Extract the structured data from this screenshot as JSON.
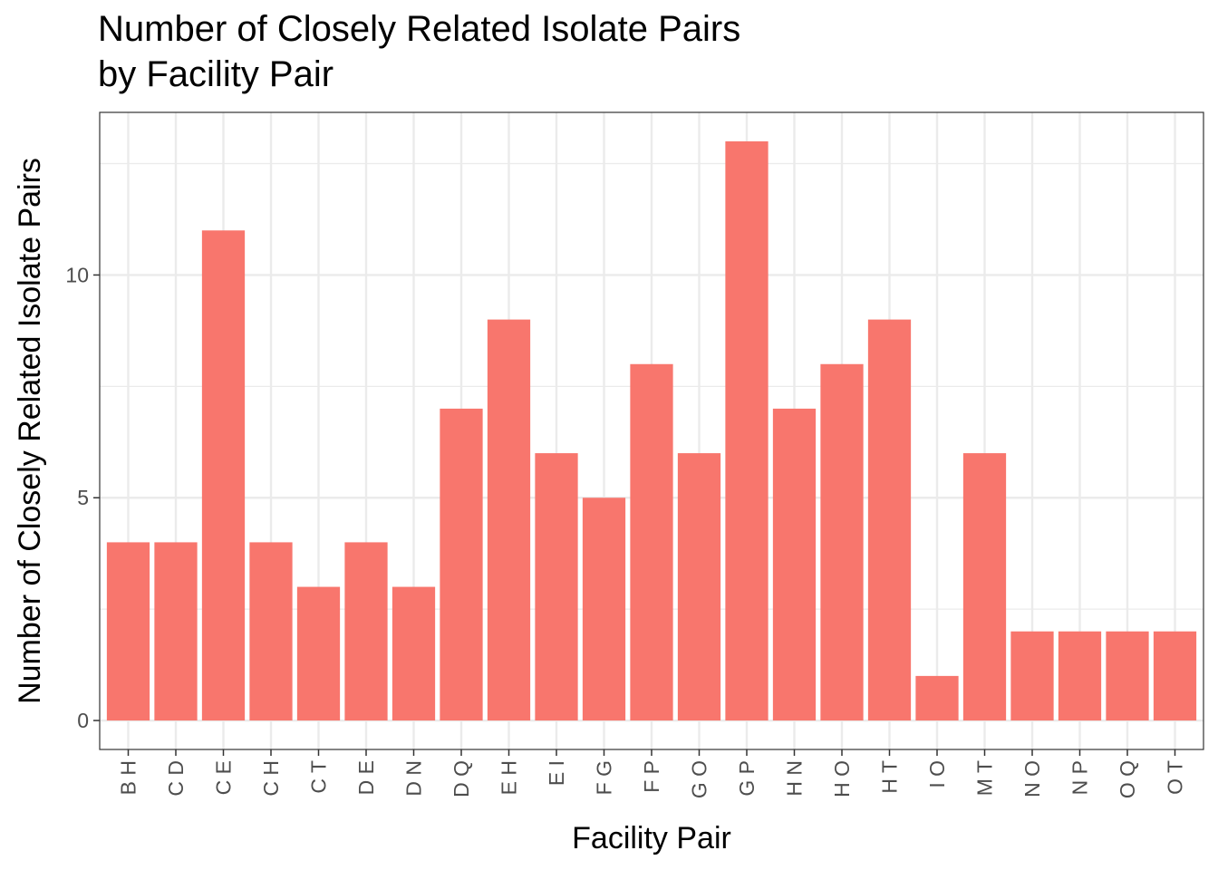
{
  "chart_data": {
    "type": "bar",
    "title_lines": [
      "Number of Closely Related Isolate Pairs",
      "by Facility Pair"
    ],
    "xlabel": "Facility Pair",
    "ylabel": "Number of Closely Related Isolate Pairs",
    "categories": [
      "B H",
      "C D",
      "C E",
      "C H",
      "C T",
      "D E",
      "D N",
      "D Q",
      "E H",
      "E I",
      "F G",
      "F P",
      "G O",
      "G P",
      "H N",
      "H O",
      "H T",
      "I O",
      "M T",
      "N O",
      "N P",
      "O Q",
      "O T"
    ],
    "values": [
      4,
      4,
      11,
      4,
      3,
      4,
      3,
      7,
      9,
      6,
      5,
      8,
      6,
      13,
      7,
      8,
      9,
      1,
      6,
      2,
      2,
      2,
      2
    ],
    "ylim": [
      -0.65,
      13.65
    ],
    "yticks": [
      0,
      5,
      10
    ],
    "ytick_labels": [
      "0",
      "5",
      "10"
    ],
    "grid": true,
    "bar_color": "#F8766D",
    "panel_border_color": "#333333",
    "grid_color": "#ebebeb"
  }
}
